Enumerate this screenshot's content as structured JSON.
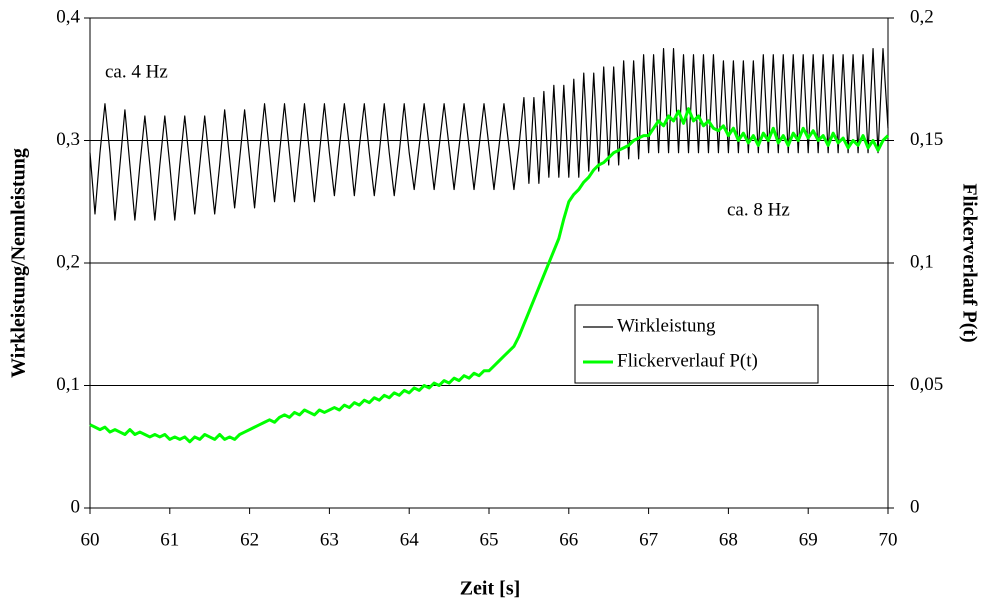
{
  "chart_data": {
    "type": "line",
    "xlabel": "Zeit [s]",
    "ylabel": "Wirkleistung/Nennleistung",
    "y2label": "Flickerverlauf P(t)",
    "annotations": [
      "ca. 4 Hz",
      "ca. 8 Hz"
    ],
    "xlim": [
      60,
      70
    ],
    "xticks": [
      60,
      61,
      62,
      63,
      64,
      65,
      66,
      67,
      68,
      69,
      70
    ],
    "ylim": [
      0,
      0.4
    ],
    "yticks": [
      0,
      {
        "value": 0.1,
        "label": "0,1"
      },
      {
        "value": 0.2,
        "label": "0,2"
      },
      {
        "value": 0.3,
        "label": "0,3"
      },
      {
        "value": 0.4,
        "label": "0,4"
      }
    ],
    "y2lim": [
      0,
      0.2
    ],
    "y2ticks": [
      0,
      {
        "value": 0.05,
        "label": "0,05"
      },
      {
        "value": 0.1,
        "label": "0,1"
      },
      {
        "value": 0.15,
        "label": "0,15"
      },
      {
        "value": 0.2,
        "label": "0,2"
      }
    ],
    "grid": true,
    "x": [
      60,
      60.0625,
      60.125,
      60.1875,
      60.25,
      60.3125,
      60.375,
      60.4375,
      60.5,
      60.5625,
      60.625,
      60.6875,
      60.75,
      60.8125,
      60.875,
      60.9375,
      61,
      61.0625,
      61.125,
      61.1875,
      61.25,
      61.3125,
      61.375,
      61.4375,
      61.5,
      61.5625,
      61.625,
      61.6875,
      61.75,
      61.8125,
      61.875,
      61.9375,
      62,
      62.0625,
      62.125,
      62.1875,
      62.25,
      62.3125,
      62.375,
      62.4375,
      62.5,
      62.5625,
      62.625,
      62.6875,
      62.75,
      62.8125,
      62.875,
      62.9375,
      63,
      63.0625,
      63.125,
      63.1875,
      63.25,
      63.3125,
      63.375,
      63.4375,
      63.5,
      63.5625,
      63.625,
      63.6875,
      63.75,
      63.8125,
      63.875,
      63.9375,
      64,
      64.0625,
      64.125,
      64.1875,
      64.25,
      64.3125,
      64.375,
      64.4375,
      64.5,
      64.5625,
      64.625,
      64.6875,
      64.75,
      64.8125,
      64.875,
      64.9375,
      65,
      65.0625,
      65.125,
      65.1875,
      65.25,
      65.3125,
      65.375,
      65.4375,
      65.5,
      65.5625,
      65.625,
      65.6875,
      65.75,
      65.8125,
      65.875,
      65.9375,
      66,
      66.0625,
      66.125,
      66.1875,
      66.25,
      66.3125,
      66.375,
      66.4375,
      66.5,
      66.5625,
      66.625,
      66.6875,
      66.75,
      66.8125,
      66.875,
      66.9375,
      67,
      67.0625,
      67.125,
      67.1875,
      67.25,
      67.3125,
      67.375,
      67.4375,
      67.5,
      67.5625,
      67.625,
      67.6875,
      67.75,
      67.8125,
      67.875,
      67.9375,
      68,
      68.0625,
      68.125,
      68.1875,
      68.25,
      68.3125,
      68.375,
      68.4375,
      68.5,
      68.5625,
      68.625,
      68.6875,
      68.75,
      68.8125,
      68.875,
      68.9375,
      69,
      69.0625,
      69.125,
      69.1875,
      69.25,
      69.3125,
      69.375,
      69.4375,
      69.5,
      69.5625,
      69.625,
      69.6875,
      69.75,
      69.8125,
      69.875,
      69.9375,
      70
    ],
    "series": [
      {
        "name": "Wirkleistung",
        "color": "#000000",
        "axis": "y",
        "values": [
          0.29,
          0.24,
          0.29,
          0.33,
          0.29,
          0.235,
          0.28,
          0.325,
          0.28,
          0.235,
          0.28,
          0.32,
          0.28,
          0.235,
          0.28,
          0.32,
          0.28,
          0.235,
          0.28,
          0.32,
          0.28,
          0.24,
          0.28,
          0.32,
          0.28,
          0.24,
          0.28,
          0.325,
          0.285,
          0.245,
          0.285,
          0.325,
          0.285,
          0.245,
          0.29,
          0.33,
          0.29,
          0.25,
          0.29,
          0.33,
          0.29,
          0.25,
          0.29,
          0.33,
          0.29,
          0.25,
          0.29,
          0.33,
          0.29,
          0.255,
          0.295,
          0.33,
          0.295,
          0.255,
          0.295,
          0.33,
          0.29,
          0.255,
          0.29,
          0.33,
          0.29,
          0.255,
          0.29,
          0.33,
          0.29,
          0.26,
          0.295,
          0.33,
          0.295,
          0.26,
          0.295,
          0.33,
          0.295,
          0.26,
          0.295,
          0.33,
          0.295,
          0.26,
          0.295,
          0.33,
          0.295,
          0.26,
          0.295,
          0.33,
          0.295,
          0.26,
          0.295,
          0.335,
          0.265,
          0.335,
          0.265,
          0.34,
          0.27,
          0.345,
          0.27,
          0.345,
          0.27,
          0.35,
          0.27,
          0.355,
          0.275,
          0.355,
          0.275,
          0.36,
          0.28,
          0.36,
          0.28,
          0.365,
          0.285,
          0.365,
          0.285,
          0.37,
          0.29,
          0.37,
          0.29,
          0.375,
          0.29,
          0.375,
          0.29,
          0.37,
          0.29,
          0.37,
          0.29,
          0.37,
          0.29,
          0.37,
          0.29,
          0.365,
          0.29,
          0.365,
          0.29,
          0.365,
          0.29,
          0.365,
          0.29,
          0.37,
          0.29,
          0.37,
          0.29,
          0.37,
          0.29,
          0.37,
          0.29,
          0.37,
          0.29,
          0.37,
          0.29,
          0.37,
          0.29,
          0.37,
          0.29,
          0.37,
          0.29,
          0.37,
          0.29,
          0.37,
          0.29,
          0.375,
          0.29,
          0.375,
          0.31
        ]
      },
      {
        "name": "Flickerverlauf P(t)",
        "color": "#00ff00",
        "axis": "y2",
        "values": [
          0.034,
          0.033,
          0.032,
          0.033,
          0.031,
          0.032,
          0.031,
          0.03,
          0.032,
          0.03,
          0.031,
          0.03,
          0.029,
          0.03,
          0.029,
          0.03,
          0.028,
          0.029,
          0.028,
          0.029,
          0.027,
          0.029,
          0.028,
          0.03,
          0.029,
          0.028,
          0.03,
          0.028,
          0.029,
          0.028,
          0.03,
          0.031,
          0.032,
          0.033,
          0.034,
          0.035,
          0.036,
          0.035,
          0.037,
          0.038,
          0.037,
          0.039,
          0.038,
          0.04,
          0.039,
          0.038,
          0.04,
          0.039,
          0.04,
          0.041,
          0.04,
          0.042,
          0.041,
          0.043,
          0.042,
          0.044,
          0.043,
          0.045,
          0.044,
          0.046,
          0.045,
          0.047,
          0.046,
          0.048,
          0.047,
          0.049,
          0.048,
          0.05,
          0.049,
          0.051,
          0.05,
          0.052,
          0.051,
          0.053,
          0.052,
          0.054,
          0.053,
          0.055,
          0.054,
          0.056,
          0.056,
          0.058,
          0.06,
          0.062,
          0.064,
          0.066,
          0.07,
          0.075,
          0.08,
          0.085,
          0.09,
          0.095,
          0.1,
          0.105,
          0.11,
          0.118,
          0.125,
          0.128,
          0.13,
          0.133,
          0.135,
          0.138,
          0.14,
          0.141,
          0.143,
          0.145,
          0.146,
          0.147,
          0.148,
          0.15,
          0.151,
          0.152,
          0.152,
          0.155,
          0.158,
          0.156,
          0.16,
          0.158,
          0.162,
          0.157,
          0.163,
          0.158,
          0.16,
          0.156,
          0.158,
          0.155,
          0.154,
          0.156,
          0.152,
          0.155,
          0.15,
          0.153,
          0.149,
          0.152,
          0.148,
          0.153,
          0.15,
          0.155,
          0.149,
          0.152,
          0.148,
          0.153,
          0.15,
          0.155,
          0.151,
          0.154,
          0.15,
          0.152,
          0.148,
          0.153,
          0.149,
          0.151,
          0.147,
          0.15,
          0.148,
          0.152,
          0.147,
          0.15,
          0.146,
          0.15,
          0.152
        ]
      }
    ]
  }
}
